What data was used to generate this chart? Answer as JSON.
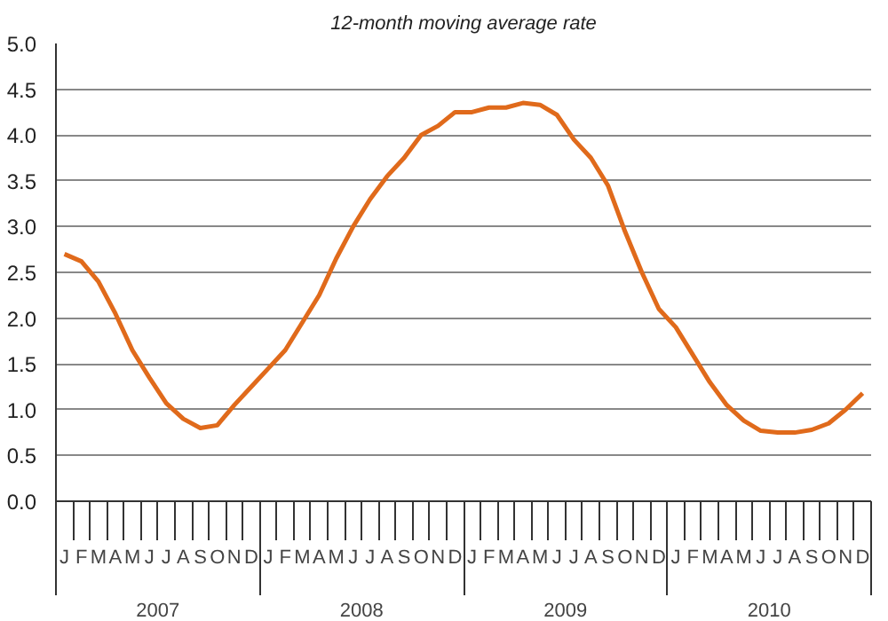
{
  "chart_data": {
    "type": "line",
    "title": "12-month moving average rate",
    "categories": [
      "J",
      "F",
      "M",
      "A",
      "M",
      "J",
      "J",
      "A",
      "S",
      "O",
      "N",
      "D",
      "J",
      "F",
      "M",
      "A",
      "M",
      "J",
      "J",
      "A",
      "S",
      "O",
      "N",
      "D",
      "J",
      "F",
      "M",
      "A",
      "M",
      "J",
      "J",
      "A",
      "S",
      "O",
      "N",
      "D",
      "J",
      "F",
      "M",
      "A",
      "M",
      "J",
      "J",
      "A",
      "S",
      "O",
      "N",
      "D"
    ],
    "series": [
      {
        "color": "#e06a1b",
        "values": [
          2.7,
          2.62,
          2.4,
          2.05,
          1.65,
          1.35,
          1.07,
          0.9,
          0.8,
          0.83,
          1.05,
          1.25,
          1.45,
          1.65,
          1.95,
          2.25,
          2.65,
          3.0,
          3.3,
          3.55,
          3.75,
          4.0,
          4.1,
          4.25,
          4.25,
          4.3,
          4.3,
          4.35,
          4.33,
          4.22,
          3.95,
          3.75,
          3.45,
          2.95,
          2.5,
          2.1,
          1.9,
          1.6,
          1.3,
          1.05,
          0.88,
          0.77,
          0.75,
          0.75,
          0.78,
          0.85,
          1.0,
          1.18
        ]
      }
    ],
    "annotations": [
      "2007",
      "2008",
      "2009",
      "2010"
    ],
    "ylim": [
      0,
      5
    ],
    "yticks": [
      {
        "value": 0,
        "label": "0.0"
      },
      {
        "value": 0.5,
        "label": "0.5"
      },
      {
        "value": 1,
        "label": "1.0"
      },
      {
        "value": 1.5,
        "label": "1.5"
      },
      {
        "value": 2,
        "label": "2.0"
      },
      {
        "value": 2.5,
        "label": "2.5"
      },
      {
        "value": 3,
        "label": "3.0"
      },
      {
        "value": 3.5,
        "label": "3.5"
      },
      {
        "value": 4,
        "label": "4.0"
      },
      {
        "value": 4.5,
        "label": "4.5"
      },
      {
        "value": 5,
        "label": "5.0"
      }
    ],
    "grid": "y",
    "marker": "none",
    "line_style": "solid"
  }
}
